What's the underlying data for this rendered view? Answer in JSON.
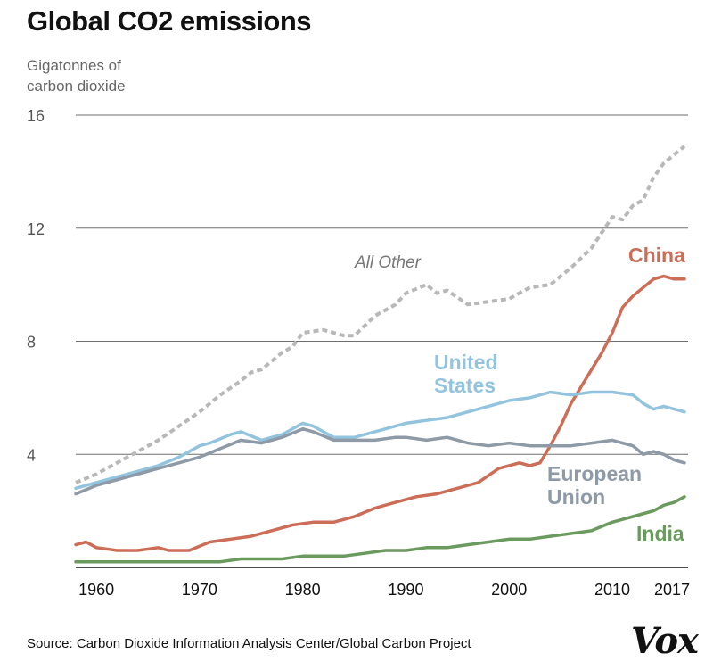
{
  "header": {
    "title": "Global CO2 emissions",
    "ylabel_line1": "Gigatonnes of",
    "ylabel_line2": "carbon dioxide"
  },
  "footer": {
    "source": "Source: Carbon Dioxide Information Analysis Center/Global Carbon Project",
    "logo": "Vox"
  },
  "chart_data": {
    "type": "line",
    "title": "Global CO2 emissions",
    "ylabel": "Gigatonnes of carbon dioxide",
    "xlabel": "",
    "xlim": [
      1958,
      2017
    ],
    "ylim": [
      0,
      16
    ],
    "yticks": [
      4,
      8,
      12,
      16
    ],
    "xticks": [
      1960,
      1970,
      1980,
      1990,
      2000,
      2010,
      2017
    ],
    "grid": true,
    "annotation": "All Other",
    "series": [
      {
        "name": "All Other",
        "label": "All Other",
        "color": "#b8b8b8",
        "dashed": true,
        "x": [
          1958,
          1960,
          1962,
          1964,
          1966,
          1968,
          1970,
          1972,
          1974,
          1975,
          1976,
          1978,
          1979,
          1980,
          1982,
          1984,
          1985,
          1987,
          1989,
          1990,
          1992,
          1993,
          1994,
          1996,
          1998,
          2000,
          2002,
          2004,
          2006,
          2008,
          2010,
          2011,
          2012,
          2013,
          2014,
          2015,
          2016,
          2017
        ],
        "values": [
          3.0,
          3.3,
          3.7,
          4.1,
          4.5,
          5.0,
          5.5,
          6.1,
          6.6,
          6.9,
          7.0,
          7.6,
          7.8,
          8.3,
          8.4,
          8.2,
          8.2,
          8.9,
          9.3,
          9.7,
          10.0,
          9.7,
          9.8,
          9.3,
          9.4,
          9.5,
          9.9,
          10.0,
          10.6,
          11.3,
          12.4,
          12.3,
          12.8,
          13.0,
          13.8,
          14.3,
          14.6,
          14.9
        ]
      },
      {
        "name": "China",
        "label": "China",
        "color": "#cc6d58",
        "dashed": false,
        "x": [
          1958,
          1959,
          1960,
          1962,
          1964,
          1966,
          1967,
          1969,
          1971,
          1973,
          1975,
          1977,
          1979,
          1981,
          1983,
          1985,
          1987,
          1989,
          1991,
          1993,
          1995,
          1997,
          1999,
          2001,
          2002,
          2003,
          2004,
          2005,
          2006,
          2007,
          2008,
          2009,
          2010,
          2011,
          2012,
          2013,
          2014,
          2015,
          2016,
          2017
        ],
        "values": [
          0.8,
          0.9,
          0.7,
          0.6,
          0.6,
          0.7,
          0.6,
          0.6,
          0.9,
          1.0,
          1.1,
          1.3,
          1.5,
          1.6,
          1.6,
          1.8,
          2.1,
          2.3,
          2.5,
          2.6,
          2.8,
          3.0,
          3.5,
          3.7,
          3.6,
          3.7,
          4.3,
          5.0,
          5.8,
          6.4,
          7.0,
          7.6,
          8.3,
          9.2,
          9.6,
          9.9,
          10.2,
          10.3,
          10.2,
          10.2
        ]
      },
      {
        "name": "United States",
        "label": "United States",
        "color": "#93c4de",
        "dashed": false,
        "x": [
          1958,
          1960,
          1962,
          1964,
          1966,
          1968,
          1970,
          1971,
          1973,
          1974,
          1976,
          1978,
          1980,
          1981,
          1983,
          1985,
          1987,
          1989,
          1990,
          1992,
          1994,
          1996,
          1998,
          2000,
          2002,
          2003,
          2004,
          2006,
          2008,
          2010,
          2012,
          2013,
          2014,
          2015,
          2016,
          2017
        ],
        "values": [
          2.8,
          3.0,
          3.2,
          3.4,
          3.6,
          3.9,
          4.3,
          4.4,
          4.7,
          4.8,
          4.5,
          4.7,
          5.1,
          5.0,
          4.6,
          4.6,
          4.8,
          5.0,
          5.1,
          5.2,
          5.3,
          5.5,
          5.7,
          5.9,
          6.0,
          6.1,
          6.2,
          6.1,
          6.2,
          6.2,
          6.1,
          5.8,
          5.6,
          5.7,
          5.6,
          5.5
        ]
      },
      {
        "name": "European Union",
        "label_line1": "European",
        "label_line2": "Union",
        "color": "#8e9aa6",
        "dashed": false,
        "x": [
          1958,
          1960,
          1962,
          1964,
          1966,
          1968,
          1970,
          1972,
          1974,
          1976,
          1978,
          1980,
          1981,
          1983,
          1985,
          1987,
          1989,
          1990,
          1992,
          1994,
          1996,
          1998,
          2000,
          2002,
          2004,
          2006,
          2008,
          2010,
          2012,
          2013,
          2014,
          2015,
          2016,
          2017
        ],
        "values": [
          2.6,
          2.9,
          3.1,
          3.3,
          3.5,
          3.7,
          3.9,
          4.2,
          4.5,
          4.4,
          4.6,
          4.9,
          4.8,
          4.5,
          4.5,
          4.5,
          4.6,
          4.6,
          4.5,
          4.6,
          4.4,
          4.3,
          4.4,
          4.3,
          4.3,
          4.3,
          4.4,
          4.5,
          4.3,
          4.0,
          4.1,
          4.0,
          3.8,
          3.7
        ]
      },
      {
        "name": "India",
        "label": "India",
        "color": "#6a9a5e",
        "dashed": false,
        "x": [
          1958,
          1960,
          1962,
          1964,
          1966,
          1968,
          1970,
          1972,
          1974,
          1976,
          1978,
          1980,
          1982,
          1984,
          1986,
          1988,
          1990,
          1992,
          1994,
          1996,
          1998,
          2000,
          2002,
          2004,
          2006,
          2008,
          2010,
          2012,
          2014,
          2015,
          2016,
          2017
        ],
        "values": [
          0.2,
          0.2,
          0.2,
          0.2,
          0.2,
          0.2,
          0.2,
          0.2,
          0.3,
          0.3,
          0.3,
          0.4,
          0.4,
          0.4,
          0.5,
          0.6,
          0.6,
          0.7,
          0.7,
          0.8,
          0.9,
          1.0,
          1.0,
          1.1,
          1.2,
          1.3,
          1.6,
          1.8,
          2.0,
          2.2,
          2.3,
          2.5
        ]
      }
    ]
  }
}
